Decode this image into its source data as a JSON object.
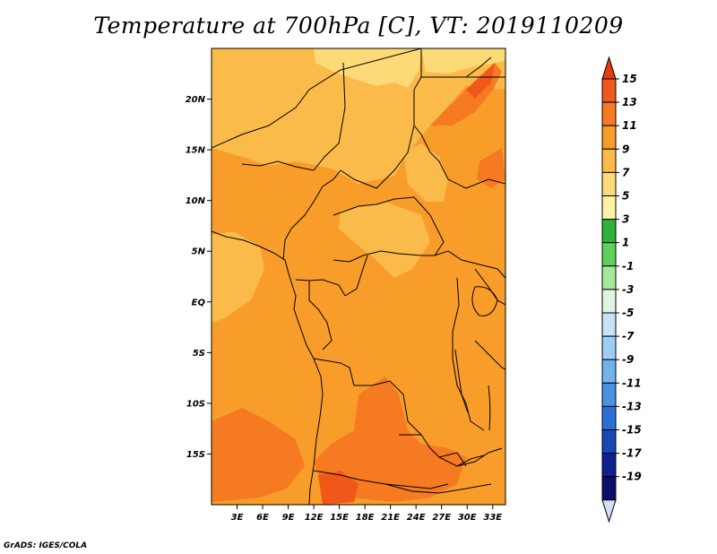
{
  "title": "Temperature at 700hPa [C], VT: 2019110209",
  "credit": "GrADS: IGES/COLA",
  "map": {
    "lon_range": [
      0,
      34.5
    ],
    "lat_range": [
      -20,
      25
    ],
    "lat_ticks": [
      {
        "value": 20,
        "label": "20N"
      },
      {
        "value": 15,
        "label": "15N"
      },
      {
        "value": 10,
        "label": "10N"
      },
      {
        "value": 5,
        "label": "5N"
      },
      {
        "value": 0,
        "label": "EQ"
      },
      {
        "value": -5,
        "label": "5S"
      },
      {
        "value": -10,
        "label": "10S"
      },
      {
        "value": -15,
        "label": "15S"
      }
    ],
    "lon_ticks": [
      {
        "value": 3,
        "label": "3E"
      },
      {
        "value": 6,
        "label": "6E"
      },
      {
        "value": 9,
        "label": "9E"
      },
      {
        "value": 12,
        "label": "12E"
      },
      {
        "value": 15,
        "label": "15E"
      },
      {
        "value": 18,
        "label": "18E"
      },
      {
        "value": 21,
        "label": "21E"
      },
      {
        "value": 24,
        "label": "24E"
      },
      {
        "value": 27,
        "label": "27E"
      },
      {
        "value": 30,
        "label": "30E"
      },
      {
        "value": 33,
        "label": "33E"
      }
    ]
  },
  "colorbar": {
    "labels": [
      "15",
      "13",
      "11",
      "9",
      "7",
      "5",
      "3",
      "1",
      "-1",
      "-3",
      "-5",
      "-7",
      "-9",
      "-11",
      "-13",
      "-15",
      "-17",
      "-19"
    ],
    "colors": [
      "#e83a10",
      "#f0581a",
      "#f57a22",
      "#f89d2a",
      "#fbbb4a",
      "#fdda78",
      "#fdf2a6",
      "#2fb23a",
      "#5ed15a",
      "#a2ea98",
      "#dff5e2",
      "#c6e4f5",
      "#9ccdf2",
      "#73b3ec",
      "#4a93e2",
      "#2a70d6",
      "#1848b5",
      "#0d2290",
      "#0a0f6a",
      "#d8dcf8"
    ]
  }
}
